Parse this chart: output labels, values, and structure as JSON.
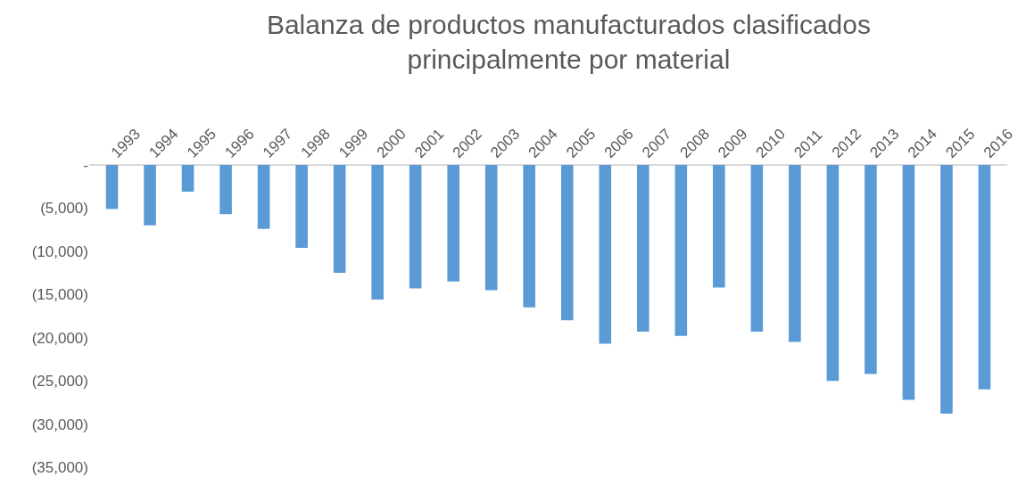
{
  "chart_data": {
    "type": "bar",
    "title": "Balanza de productos manufacturados clasificados\nprincipalmente por material",
    "categories": [
      "1993",
      "1994",
      "1995",
      "1996",
      "1997",
      "1998",
      "1999",
      "2000",
      "2001",
      "2002",
      "2003",
      "2004",
      "2005",
      "2006",
      "2007",
      "2008",
      "2009",
      "2010",
      "2011",
      "2012",
      "2013",
      "2014",
      "2015",
      "2016"
    ],
    "values": [
      -5100,
      -7000,
      -3100,
      -5700,
      -7400,
      -9600,
      -12500,
      -15600,
      -14300,
      -13500,
      -14500,
      -16500,
      -18000,
      -20700,
      -19300,
      -19800,
      -14200,
      -19300,
      -20500,
      -25000,
      -24200,
      -27200,
      -28800,
      -26000
    ],
    "color": "#5b9bd5",
    "ylim": [
      -35000,
      0
    ],
    "yticks": [
      {
        "value": 0,
        "label": "-"
      },
      {
        "value": -5000,
        "label": "(5,000)"
      },
      {
        "value": -10000,
        "label": "(10,000)"
      },
      {
        "value": -15000,
        "label": "(15,000)"
      },
      {
        "value": -20000,
        "label": "(20,000)"
      },
      {
        "value": -25000,
        "label": "(25,000)"
      },
      {
        "value": -30000,
        "label": "(30,000)"
      },
      {
        "value": -35000,
        "label": "(35,000)"
      }
    ],
    "grid": false
  }
}
